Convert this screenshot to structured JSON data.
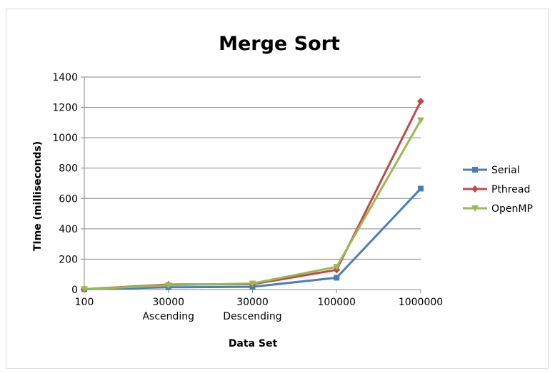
{
  "chart_data": {
    "type": "line",
    "title": "Merge Sort",
    "xlabel": "Data Set",
    "ylabel": "TIme (milliseconds)",
    "categories": [
      [
        "100"
      ],
      [
        "30000",
        "Ascending"
      ],
      [
        "30000",
        "Descending"
      ],
      [
        "100000"
      ],
      [
        "1000000"
      ]
    ],
    "ylim": [
      0,
      1400
    ],
    "yticks": [
      0,
      200,
      400,
      600,
      800,
      1000,
      1200,
      1400
    ],
    "grid": true,
    "legend_position": "right",
    "series": [
      {
        "name": "Serial",
        "color": "#4a7ebb",
        "marker": "square",
        "values": [
          2,
          15,
          18,
          78,
          665
        ]
      },
      {
        "name": "Pthread",
        "color": "#be4b48",
        "marker": "diamond",
        "values": [
          3,
          33,
          35,
          130,
          1240
        ]
      },
      {
        "name": "OpenMP",
        "color": "#98b954",
        "marker": "triangle",
        "values": [
          3,
          28,
          40,
          150,
          1115
        ]
      }
    ]
  }
}
